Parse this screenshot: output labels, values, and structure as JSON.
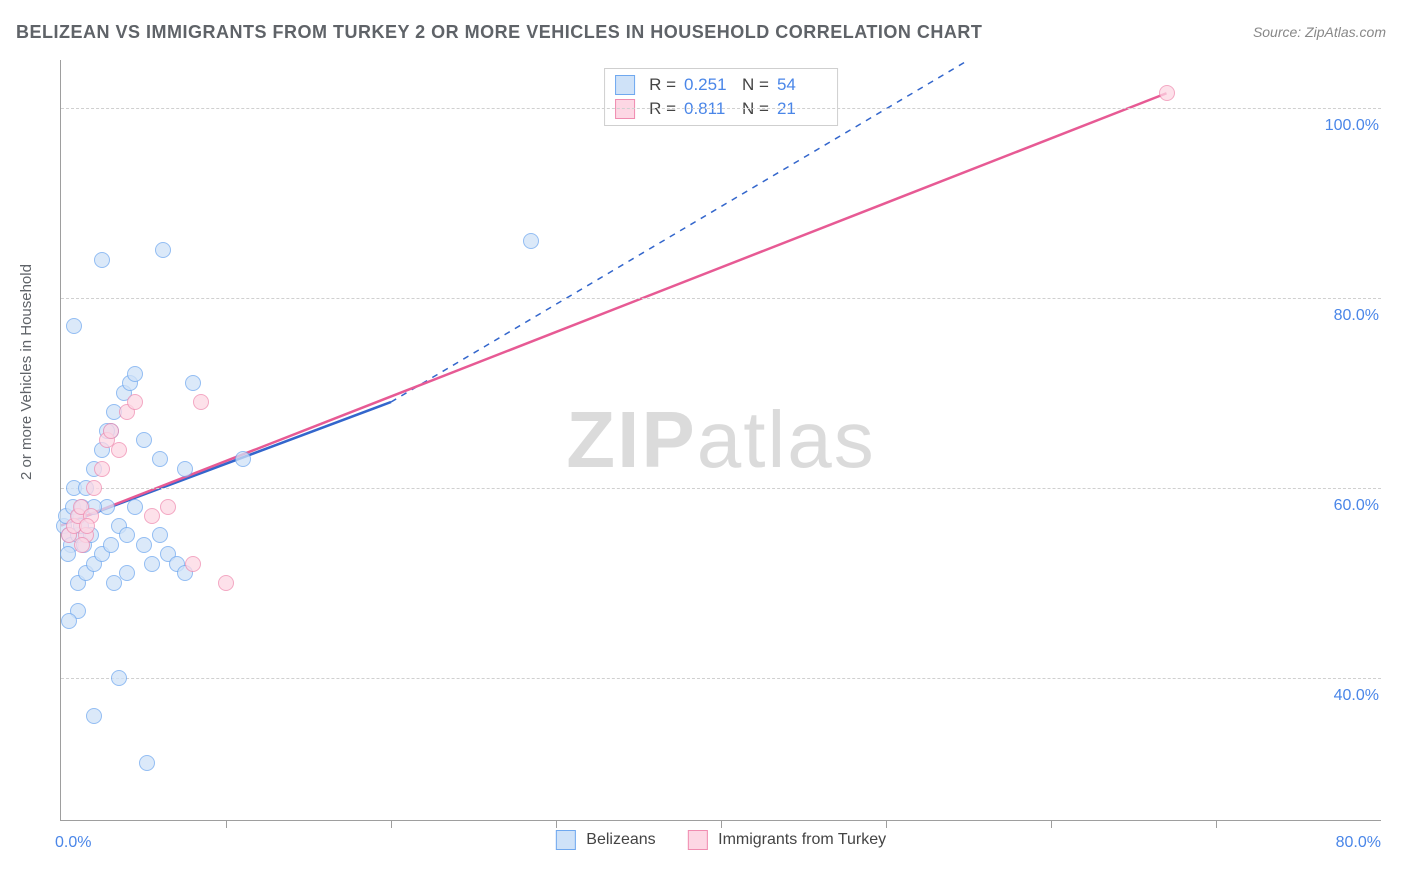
{
  "title": "BELIZEAN VS IMMIGRANTS FROM TURKEY 2 OR MORE VEHICLES IN HOUSEHOLD CORRELATION CHART",
  "source": "Source: ZipAtlas.com",
  "ylabel": "2 or more Vehicles in Household",
  "watermark_a": "ZIP",
  "watermark_b": "atlas",
  "chart": {
    "type": "scatter",
    "background_color": "#ffffff",
    "grid_color": "#d0d0d0",
    "axis_color": "#9e9e9e",
    "tick_label_color": "#4a86e8",
    "xlim": [
      0,
      80
    ],
    "ylim": [
      25,
      105
    ],
    "yticks": [
      40,
      60,
      80,
      100
    ],
    "ytick_labels": [
      "40.0%",
      "60.0%",
      "80.0%",
      "100.0%"
    ],
    "xticks_minor": [
      10,
      20,
      30,
      40,
      50,
      60,
      70
    ],
    "x_origin_label": "0.0%",
    "x_end_label": "80.0%",
    "marker_radius": 7,
    "series": [
      {
        "key": "belizeans",
        "label": "Belizeans",
        "fill": "#cfe2f8",
        "stroke": "#6fa8ef",
        "line_color": "#3366cc",
        "r_label": "R =",
        "r_value": "0.251",
        "n_label": "N =",
        "n_value": "54",
        "reg_solid": {
          "x1": 0,
          "y1": 56,
          "x2": 20,
          "y2": 69
        },
        "reg_dash": {
          "x1": 20,
          "y1": 69,
          "x2": 55,
          "y2": 105
        },
        "points": [
          [
            0.2,
            56
          ],
          [
            0.3,
            57
          ],
          [
            0.5,
            55
          ],
          [
            0.7,
            58
          ],
          [
            0.6,
            54
          ],
          [
            0.8,
            60
          ],
          [
            0.4,
            53
          ],
          [
            1.0,
            55
          ],
          [
            1.1,
            57
          ],
          [
            1.3,
            58
          ],
          [
            1.2,
            56
          ],
          [
            1.5,
            60
          ],
          [
            1.4,
            54
          ],
          [
            1.0,
            50
          ],
          [
            1.5,
            51
          ],
          [
            2.0,
            52
          ],
          [
            2.5,
            53
          ],
          [
            3.0,
            54
          ],
          [
            3.2,
            50
          ],
          [
            2.8,
            58
          ],
          [
            3.5,
            56
          ],
          [
            4.0,
            55
          ],
          [
            4.5,
            58
          ],
          [
            5.0,
            54
          ],
          [
            6.0,
            55
          ],
          [
            6.5,
            53
          ],
          [
            5.5,
            52
          ],
          [
            7.0,
            52
          ],
          [
            7.5,
            51
          ],
          [
            4.0,
            51
          ],
          [
            2.0,
            62
          ],
          [
            2.5,
            64
          ],
          [
            3.0,
            66
          ],
          [
            3.2,
            68
          ],
          [
            3.8,
            70
          ],
          [
            4.2,
            71
          ],
          [
            4.5,
            72
          ],
          [
            5.0,
            65
          ],
          [
            6.0,
            63
          ],
          [
            7.5,
            62
          ],
          [
            8.0,
            71
          ],
          [
            11.0,
            63
          ],
          [
            1.0,
            47
          ],
          [
            0.5,
            46
          ],
          [
            0.8,
            77
          ],
          [
            3.5,
            40
          ],
          [
            2.0,
            36
          ],
          [
            5.2,
            31
          ],
          [
            6.2,
            85
          ],
          [
            28.5,
            86
          ],
          [
            2.5,
            84
          ],
          [
            2.8,
            66
          ],
          [
            2.0,
            58
          ],
          [
            1.8,
            55
          ]
        ]
      },
      {
        "key": "turkey",
        "label": "Immigrants from Turkey",
        "fill": "#fdd7e4",
        "stroke": "#f08cb0",
        "line_color": "#e75a94",
        "r_label": "R =",
        "r_value": "0.811",
        "n_label": "N =",
        "n_value": "21",
        "reg_solid": {
          "x1": 0,
          "y1": 56,
          "x2": 67,
          "y2": 101.5
        },
        "points": [
          [
            0.5,
            55
          ],
          [
            0.8,
            56
          ],
          [
            1.0,
            57
          ],
          [
            1.2,
            58
          ],
          [
            1.5,
            55
          ],
          [
            1.8,
            57
          ],
          [
            1.3,
            54
          ],
          [
            1.6,
            56
          ],
          [
            2.0,
            60
          ],
          [
            2.5,
            62
          ],
          [
            2.8,
            65
          ],
          [
            3.0,
            66
          ],
          [
            3.5,
            64
          ],
          [
            4.0,
            68
          ],
          [
            4.5,
            69
          ],
          [
            5.5,
            57
          ],
          [
            6.5,
            58
          ],
          [
            8.5,
            69
          ],
          [
            8.0,
            52
          ],
          [
            10.0,
            50
          ],
          [
            67.0,
            101.5
          ]
        ]
      }
    ]
  }
}
